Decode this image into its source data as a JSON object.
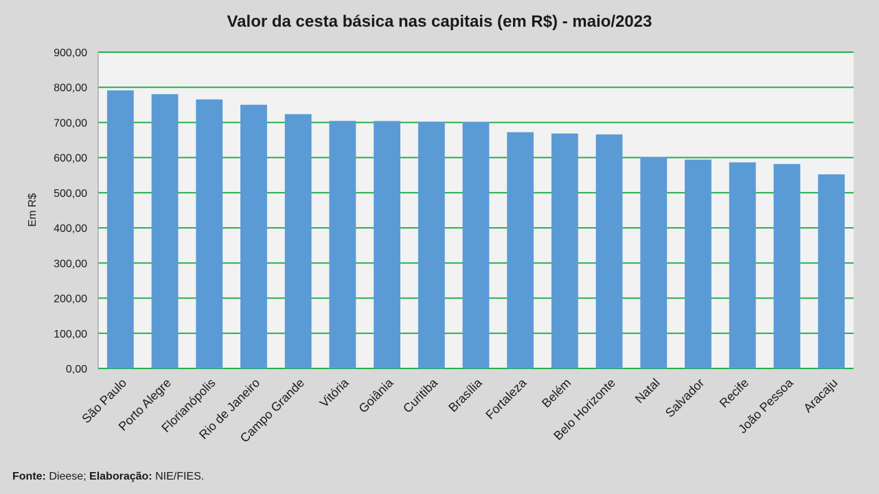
{
  "chart_data": {
    "type": "bar",
    "title": "Valor da cesta básica nas capitais (em R$) - maio/2023",
    "xlabel": "",
    "ylabel": "Em R$",
    "ylim": [
      0,
      900
    ],
    "yticks": [
      "0,00",
      "100,00",
      "200,00",
      "300,00",
      "400,00",
      "500,00",
      "600,00",
      "700,00",
      "800,00",
      "900,00"
    ],
    "grid": true,
    "categories": [
      "São Paulo",
      "Porto Alegre",
      "Florianópolis",
      "Rio de Janeiro",
      "Campo Grande",
      "Vitória",
      "Goiânia",
      "Curitiba",
      "Brasília",
      "Fortaleza",
      "Belém",
      "Belo Horizonte",
      "Natal",
      "Salvador",
      "Recife",
      "João Pessoa",
      "Aracaju"
    ],
    "values": [
      791.3,
      780.5,
      765.5,
      750.3,
      723.6,
      704.4,
      704.0,
      702.3,
      701.9,
      672.2,
      668.5,
      666.0,
      601.8,
      594.2,
      586.4,
      581.6,
      552.3
    ],
    "colors": {
      "bar": "#5b9bd5",
      "grid": "#22b04b",
      "plot_bg": "#f2f2f2",
      "page_bg": "#d9d9d9"
    }
  },
  "source": {
    "fonte_label": "Fonte:",
    "fonte_value": "Dieese;",
    "elaboracao_label": "Elaboração:",
    "elaboracao_value": "NIE/FIES."
  }
}
